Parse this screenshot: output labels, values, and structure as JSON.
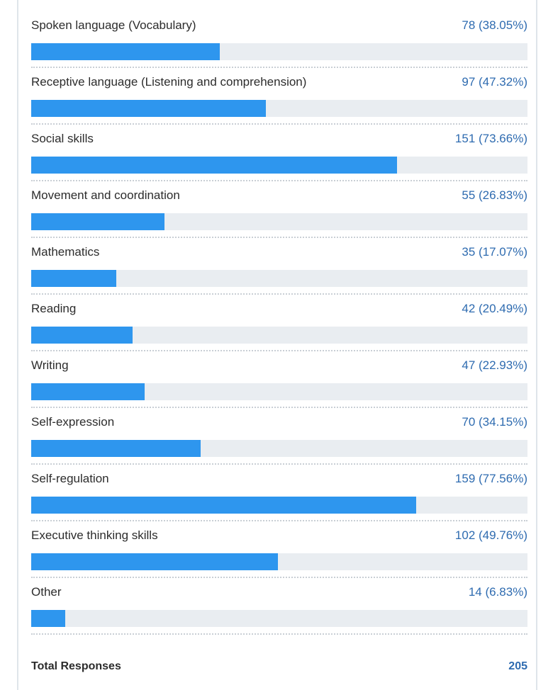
{
  "chart_data": {
    "type": "bar",
    "orientation": "horizontal",
    "categories": [
      "Spoken language (Vocabulary)",
      "Receptive language (Listening and comprehension)",
      "Social skills",
      "Movement and coordination",
      "Mathematics",
      "Reading",
      "Writing",
      "Self-expression",
      "Self-regulation",
      "Executive thinking skills",
      "Other"
    ],
    "values": [
      78,
      97,
      151,
      55,
      35,
      42,
      47,
      70,
      159,
      102,
      14
    ],
    "percentages": [
      38.05,
      47.32,
      73.66,
      26.83,
      17.07,
      20.49,
      22.93,
      34.15,
      77.56,
      49.76,
      6.83
    ],
    "value_labels": [
      "78 (38.05%)",
      "97 (47.32%)",
      "151 (73.66%)",
      "55 (26.83%)",
      "35 (17.07%)",
      "42 (20.49%)",
      "47 (22.93%)",
      "70 (34.15%)",
      "159 (77.56%)",
      "102 (49.76%)",
      "14 (6.83%)"
    ],
    "xlim": [
      0,
      205
    ],
    "grid": false,
    "colors": {
      "bar": "#2e96ee",
      "track": "#e9edf1",
      "value_text": "#2e6bb0"
    }
  },
  "total": {
    "label": "Total Responses",
    "value": "205"
  }
}
